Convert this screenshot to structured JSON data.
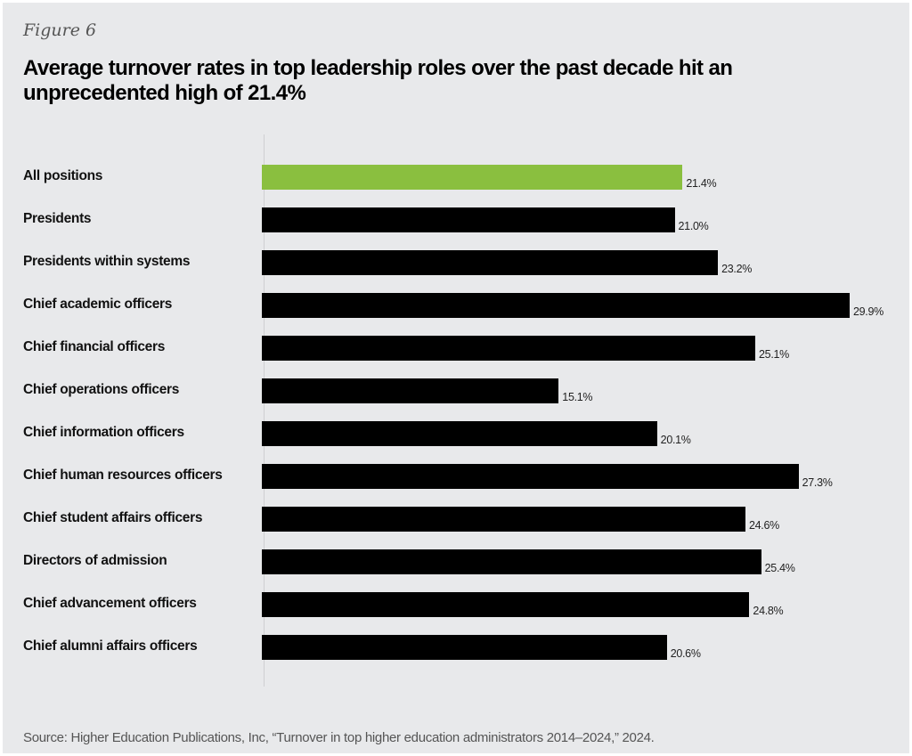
{
  "figure_label": "Figure 6",
  "title": "Average turnover rates in top leadership roles over the past decade hit an unprecedented high of 21.4%",
  "source": "Source: Higher Education Publications, Inc, “Turnover in top higher education administrators 2014–2024,” 2024.",
  "chart_data": {
    "type": "bar",
    "orientation": "horizontal",
    "categories": [
      "All positions",
      "Presidents",
      "Presidents within systems",
      "Chief academic officers",
      "Chief financial officers",
      "Chief operations officers",
      "Chief information officers",
      "Chief human resources officers",
      "Chief student affairs officers",
      "Directors of admission",
      "Chief advancement officers",
      "Chief alumni affairs officers"
    ],
    "values": [
      21.4,
      21.0,
      23.2,
      29.9,
      25.1,
      15.1,
      20.1,
      27.3,
      24.6,
      25.4,
      24.8,
      20.6
    ],
    "data_labels": [
      "21.4%",
      "21.0%",
      "23.2%",
      "29.9%",
      "25.1%",
      "15.1%",
      "20.1%",
      "27.3%",
      "24.6%",
      "25.4%",
      "24.8%",
      "20.6%"
    ],
    "unit": "%",
    "xlim": [
      0,
      29.9
    ],
    "grid": false,
    "colors": {
      "highlight": "#8abf3f",
      "default": "#000000",
      "background": "#e8e9eb"
    }
  }
}
